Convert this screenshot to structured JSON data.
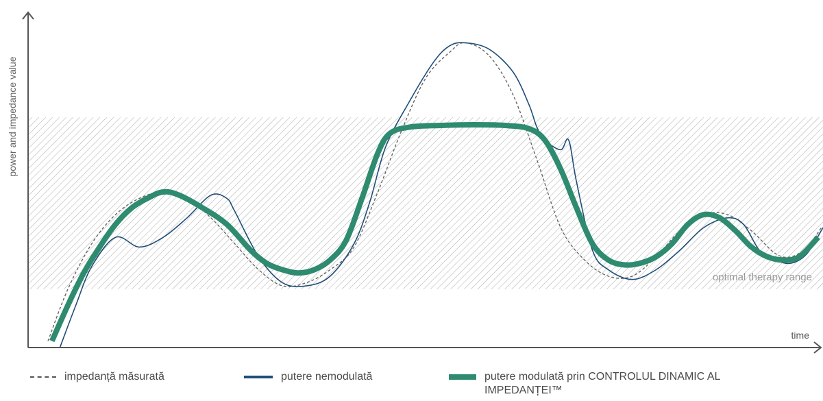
{
  "chart_data": {
    "type": "line",
    "title": "",
    "xlabel": "time",
    "ylabel": "power and impedance value",
    "xlim": [
      0,
      100
    ],
    "ylim": [
      0,
      100
    ],
    "grid": false,
    "band": {
      "label": "optimal therapy range",
      "y_range": [
        18,
        71
      ]
    },
    "legend_placement": "bottom",
    "series": [
      {
        "name": "impedanță măsurată",
        "style": "dashed",
        "color": "#666666",
        "points": [
          [
            2.5,
            2
          ],
          [
            5,
            18
          ],
          [
            8,
            32
          ],
          [
            11,
            41
          ],
          [
            14,
            46
          ],
          [
            17,
            48
          ],
          [
            20,
            46
          ],
          [
            23,
            40
          ],
          [
            26,
            32
          ],
          [
            29,
            24
          ],
          [
            32,
            19
          ],
          [
            35,
            20
          ],
          [
            38,
            24
          ],
          [
            41,
            31
          ],
          [
            44,
            48
          ],
          [
            47,
            67
          ],
          [
            50,
            83
          ],
          [
            53,
            91
          ],
          [
            55,
            94
          ],
          [
            58,
            90
          ],
          [
            61,
            78
          ],
          [
            64,
            58
          ],
          [
            67,
            37
          ],
          [
            70,
            27
          ],
          [
            73,
            22
          ],
          [
            76,
            22
          ],
          [
            79,
            28
          ],
          [
            82,
            36
          ],
          [
            85,
            41
          ],
          [
            88,
            41
          ],
          [
            91,
            36
          ],
          [
            94,
            29
          ],
          [
            96,
            28
          ],
          [
            98,
            31
          ],
          [
            99.8,
            37
          ]
        ]
      },
      {
        "name": "putere nemodulată",
        "style": "solid",
        "color": "#1f4e79",
        "points": [
          [
            4,
            0
          ],
          [
            6,
            13
          ],
          [
            8,
            25
          ],
          [
            11,
            34
          ],
          [
            14,
            31
          ],
          [
            17,
            34
          ],
          [
            20,
            40
          ],
          [
            23,
            47
          ],
          [
            25,
            46
          ],
          [
            26,
            42
          ],
          [
            29,
            28
          ],
          [
            32,
            20
          ],
          [
            35,
            19
          ],
          [
            38,
            22
          ],
          [
            41,
            32
          ],
          [
            43,
            45
          ],
          [
            45,
            62
          ],
          [
            48,
            76
          ],
          [
            51,
            88
          ],
          [
            53,
            93
          ],
          [
            55,
            94
          ],
          [
            58,
            92
          ],
          [
            61,
            85
          ],
          [
            63,
            75
          ],
          [
            64,
            68
          ],
          [
            65,
            64
          ],
          [
            67,
            61
          ],
          [
            68,
            64
          ],
          [
            69,
            51
          ],
          [
            71,
            30
          ],
          [
            73,
            24
          ],
          [
            76,
            21
          ],
          [
            79,
            24
          ],
          [
            82,
            30
          ],
          [
            85,
            37
          ],
          [
            88,
            40
          ],
          [
            90,
            38
          ],
          [
            92,
            30
          ],
          [
            94,
            27
          ],
          [
            96,
            26
          ],
          [
            98,
            29
          ],
          [
            100,
            37
          ]
        ]
      },
      {
        "name": "putere modulată prin CONTROLUL DINAMIC AL IMPEDANȚEI™",
        "style": "solid-thick",
        "color": "#2e8b6f",
        "points": [
          [
            3,
            2
          ],
          [
            5,
            13
          ],
          [
            7,
            23
          ],
          [
            9,
            31
          ],
          [
            11,
            38
          ],
          [
            13,
            43
          ],
          [
            15,
            46
          ],
          [
            17,
            48
          ],
          [
            19,
            47
          ],
          [
            22,
            43
          ],
          [
            25,
            38
          ],
          [
            28,
            30
          ],
          [
            30,
            26
          ],
          [
            32,
            24
          ],
          [
            34,
            23
          ],
          [
            36,
            24
          ],
          [
            38,
            27
          ],
          [
            40,
            33
          ],
          [
            42,
            46
          ],
          [
            44,
            60
          ],
          [
            45.5,
            66
          ],
          [
            48,
            68
          ],
          [
            52,
            68.5
          ],
          [
            56,
            68.7
          ],
          [
            60,
            68.5
          ],
          [
            63,
            67.5
          ],
          [
            65,
            64
          ],
          [
            67,
            55
          ],
          [
            69,
            43
          ],
          [
            71,
            32
          ],
          [
            73,
            27
          ],
          [
            75,
            25.5
          ],
          [
            77,
            26
          ],
          [
            79,
            28
          ],
          [
            81,
            32
          ],
          [
            83,
            38
          ],
          [
            85,
            41
          ],
          [
            87,
            40
          ],
          [
            89,
            36
          ],
          [
            91,
            31
          ],
          [
            93,
            28
          ],
          [
            95,
            27
          ],
          [
            97,
            28
          ],
          [
            99.4,
            34
          ]
        ]
      }
    ]
  },
  "legend": {
    "items": [
      {
        "label": "impedanță măsurată"
      },
      {
        "label": "putere nemodulată"
      },
      {
        "label": "putere modulată prin CONTROLUL DINAMIC AL IMPEDANȚEI™"
      }
    ]
  }
}
